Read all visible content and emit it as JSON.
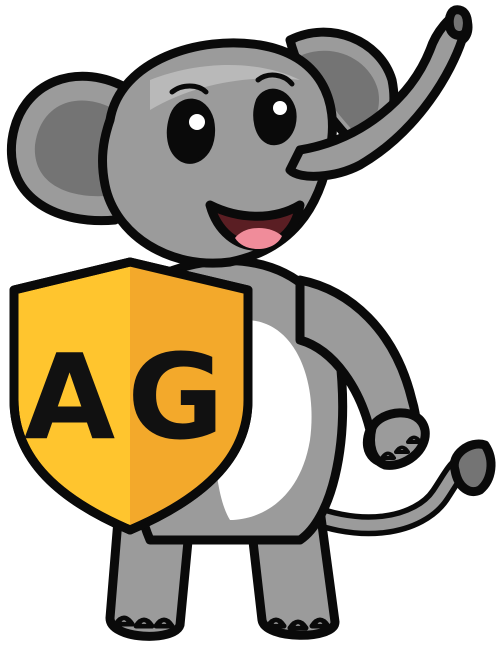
{
  "mascot": {
    "icon": "elephant-mascot-icon",
    "colors": {
      "outline": "#0a0a0a",
      "skin": "#9b9b9b",
      "skin_light": "#b9b9b9",
      "skin_dark": "#747474",
      "belly": "#ffffff",
      "mouth": "#5a1e23",
      "tongue": "#f08c9a"
    }
  },
  "shield": {
    "icon": "shield-icon",
    "monogram": "AG",
    "colors": {
      "left": "#ffc52e",
      "right": "#f3a92b",
      "letters": "#111111"
    }
  }
}
